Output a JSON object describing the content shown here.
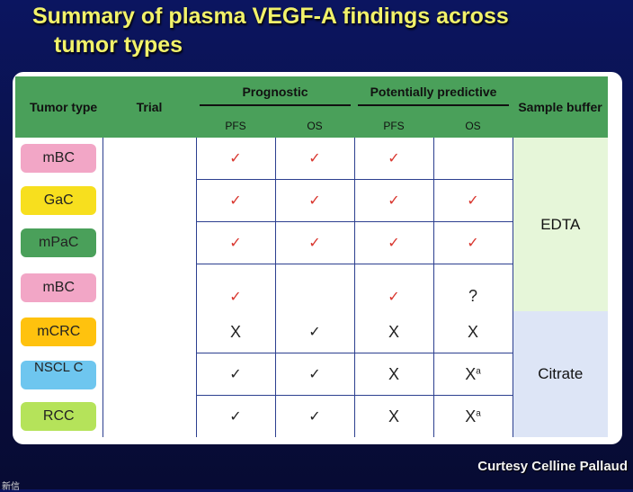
{
  "title": {
    "line1": "Summary of plasma VEGF-A findings across",
    "line2": "tumor types"
  },
  "header": {
    "tumor_type": "Tumor type",
    "trial": "Trial",
    "prognostic": "Prognostic",
    "predictive": "Potentially predictive",
    "sample_buffer": "Sample buffer",
    "pfs": "PFS",
    "os": "OS"
  },
  "rows": [
    {
      "tumor": "mBC",
      "color": "#f2a6c6",
      "prog_pfs": "✓",
      "prog_os": "✓",
      "pred_pfs": "✓",
      "pred_os": ""
    },
    {
      "tumor": "GaC",
      "color": "#f7df1e",
      "prog_pfs": "✓",
      "prog_os": "✓",
      "pred_pfs": "✓",
      "pred_os": "✓"
    },
    {
      "tumor": "mPaC",
      "color": "#4aa05a",
      "prog_pfs": "✓",
      "prog_os": "✓",
      "pred_pfs": "✓",
      "pred_os": "✓"
    },
    {
      "tumor": "mBC",
      "color": "#f2a6c6",
      "prog_pfs": "✓",
      "prog_os": "",
      "pred_pfs": "✓",
      "pred_os": "?"
    },
    {
      "tumor": "mCRC",
      "color": "#ffc20e",
      "prog_pfs": "X",
      "prog_os": "✓",
      "pred_pfs": "X",
      "pred_os": "X"
    },
    {
      "tumor": "NSCL C",
      "color": "#6ec6ef",
      "prog_pfs": "✓",
      "prog_os": "✓",
      "pred_pfs": "X",
      "pred_os": "X",
      "pred_os_sup": "a"
    },
    {
      "tumor": "RCC",
      "color": "#b5e35a",
      "prog_pfs": "✓",
      "prog_os": "✓",
      "pred_pfs": "X",
      "pred_os": "X",
      "pred_os_sup": "a"
    }
  ],
  "buffers": {
    "edta": "EDTA",
    "citrate": "Citrate"
  },
  "credit": "Curtesy Celline Pallaud",
  "footer_mark": "新信"
}
